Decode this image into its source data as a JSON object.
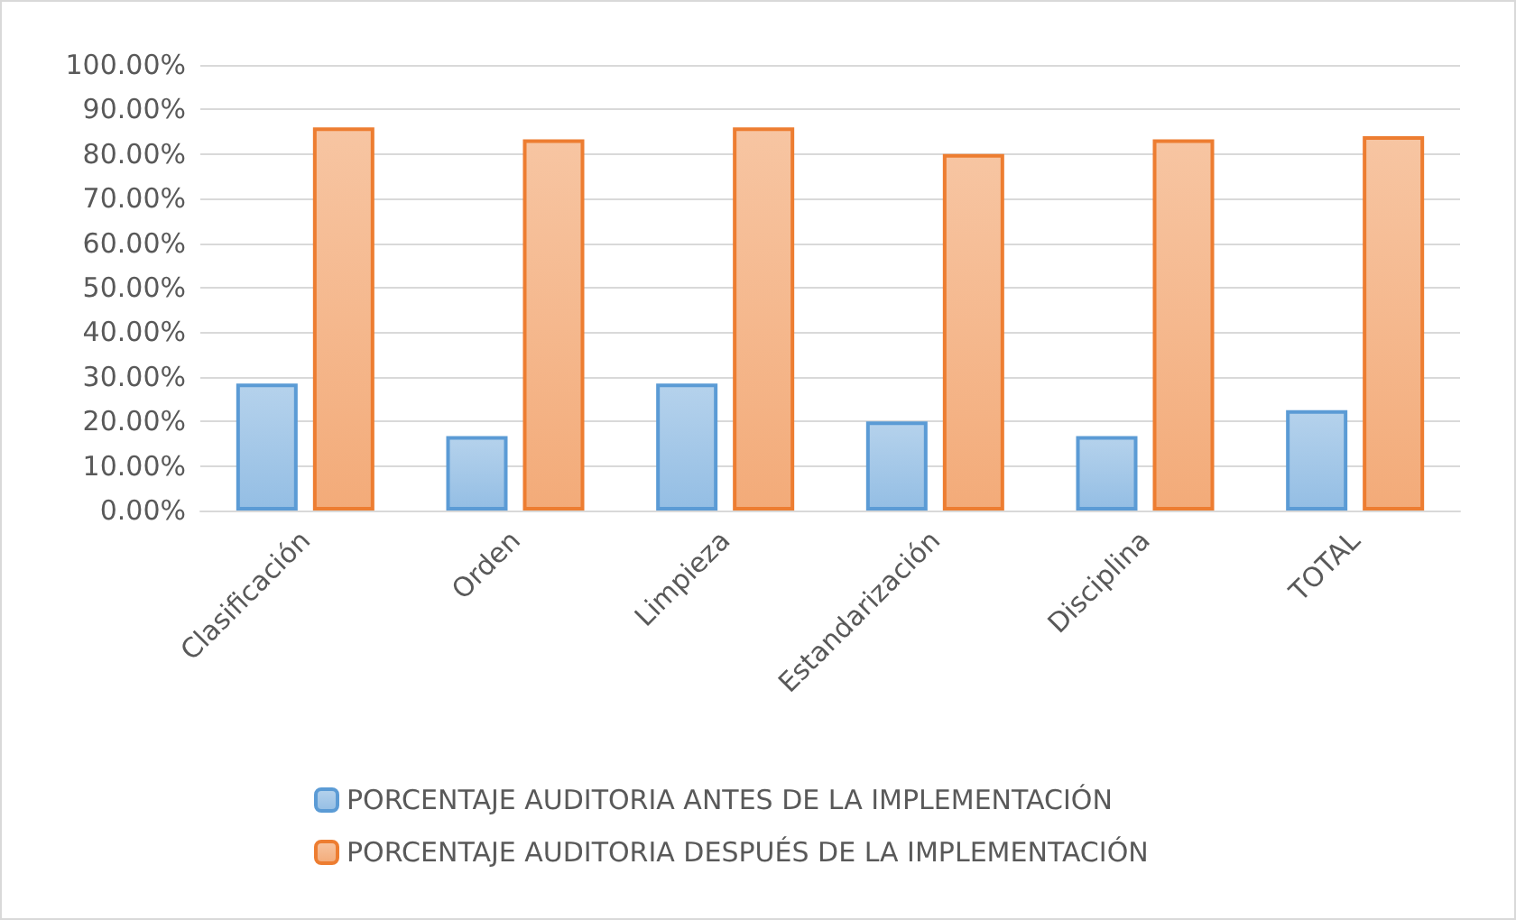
{
  "chart_data": {
    "type": "bar",
    "categories": [
      "Clasificación",
      "Orden",
      "Limpieza",
      "Estandarización",
      "Disciplina",
      "TOTAL"
    ],
    "series": [
      {
        "name": "PORCENTAJE AUDITORIA ANTES DE LA IMPLEMENTACIÓN",
        "color": "#5b9bd5",
        "values": [
          28.5,
          16.7,
          28.5,
          20,
          16.7,
          22.5
        ]
      },
      {
        "name": "PORCENTAJE AUDITORIA DESPUÉS DE LA IMPLEMENTACIÓN",
        "color": "#ed7d31",
        "values": [
          86,
          83.3,
          86,
          80,
          83.3,
          84
        ]
      }
    ],
    "ylim": [
      0,
      100
    ],
    "yticks": [
      {
        "value": 0,
        "label": "0.00%"
      },
      {
        "value": 10,
        "label": "10.00%"
      },
      {
        "value": 20,
        "label": "20.00%"
      },
      {
        "value": 30,
        "label": "30.00%"
      },
      {
        "value": 40,
        "label": "40.00%"
      },
      {
        "value": 50,
        "label": "50.00%"
      },
      {
        "value": 60,
        "label": "60.00%"
      },
      {
        "value": 70,
        "label": "70.00%"
      },
      {
        "value": 80,
        "label": "80.00%"
      },
      {
        "value": 90,
        "label": "90.00%"
      },
      {
        "value": 100,
        "label": "100.00%"
      }
    ],
    "grid": "y",
    "legend": "bottom"
  }
}
